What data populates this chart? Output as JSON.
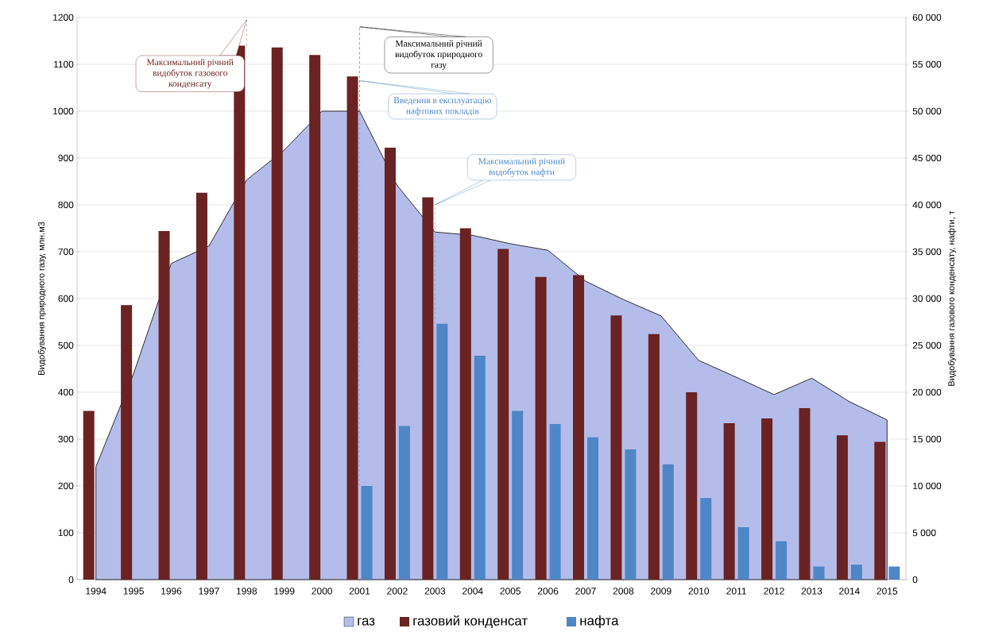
{
  "chart_data": {
    "type": "bar",
    "categories": [
      "1994",
      "1995",
      "1996",
      "1997",
      "1998",
      "1999",
      "2000",
      "2001",
      "2002",
      "2003",
      "2004",
      "2005",
      "2006",
      "2007",
      "2008",
      "2009",
      "2010",
      "2011",
      "2012",
      "2013",
      "2014",
      "2015"
    ],
    "series": [
      {
        "name": "газ",
        "type": "area",
        "color": "#b4bdea",
        "values": [
          241,
          440,
          675,
          712,
          853,
          917,
          1000,
          1000,
          841,
          742,
          735,
          717,
          703,
          637,
          598,
          563,
          468,
          432,
          395,
          430,
          380,
          341
        ]
      },
      {
        "name": "газовий конденсат",
        "axis": "y2",
        "color": "#6b2222",
        "values": [
          18000,
          29300,
          37200,
          41300,
          57000,
          56800,
          56000,
          53700,
          46100,
          40800,
          37500,
          35300,
          32300,
          32500,
          28200,
          26200,
          20000,
          16700,
          17200,
          18300,
          15400,
          14700
        ]
      },
      {
        "name": "нафта",
        "axis": "y2",
        "color": "#4f86c6",
        "values": [
          null,
          null,
          null,
          null,
          null,
          null,
          null,
          10000,
          16400,
          27300,
          23900,
          18000,
          16600,
          15200,
          13900,
          12300,
          8700,
          5600,
          4100,
          1400,
          1600,
          1400
        ]
      }
    ],
    "ylabel": "Видобування природного газу, млн.м3",
    "y2label": "Видобування газового конденсату, нафти, т",
    "ylim": [
      0,
      1200
    ],
    "yticks": [
      0,
      100,
      200,
      300,
      400,
      500,
      600,
      700,
      800,
      900,
      1000,
      1100,
      1200
    ],
    "y2lim": [
      0,
      60000
    ],
    "y2ticks": [
      0,
      {
        "value": 5000,
        "label": "5 000"
      },
      {
        "value": 10000,
        "label": "10 000"
      },
      {
        "value": 15000,
        "label": "15 000"
      },
      {
        "value": 20000,
        "label": "20 000"
      },
      {
        "value": 25000,
        "label": "25 000"
      },
      {
        "value": 30000,
        "label": "30 000"
      },
      {
        "value": 35000,
        "label": "35 000"
      },
      {
        "value": 40000,
        "label": "40 000"
      },
      {
        "value": 45000,
        "label": "45 000"
      },
      {
        "value": 50000,
        "label": "50 000"
      },
      {
        "value": 55000,
        "label": "55 000"
      },
      {
        "value": 60000,
        "label": "60 000"
      }
    ],
    "grid": "y",
    "legend": "bottom",
    "annotations": [
      {
        "text": "Максимальний річний видобуток газового конденсату",
        "x": "1998",
        "y": 1140
      },
      {
        "text": "Максимальний річний видобуток природного газу",
        "x": "2001",
        "y": 1000
      },
      {
        "text": "Введення в експлуатацію нафтових покладів",
        "x": "2001",
        "y": 200
      },
      {
        "text": "Максимальний річний видобуток нафти",
        "x": "2003",
        "y": 546
      }
    ]
  }
}
